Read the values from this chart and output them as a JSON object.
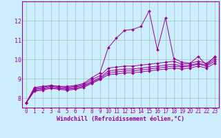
{
  "title": "",
  "xlabel": "Windchill (Refroidissement éolien,°C)",
  "background_color": "#cceeff",
  "line_color": "#990099",
  "grid_color": "#99bbbb",
  "xlim": [
    -0.5,
    23.5
  ],
  "ylim": [
    7.5,
    13.0
  ],
  "xtick_vals": [
    0,
    1,
    2,
    3,
    4,
    5,
    6,
    7,
    8,
    9,
    10,
    11,
    12,
    13,
    14,
    15,
    16,
    17,
    18,
    19,
    20,
    21,
    22,
    23
  ],
  "ytick_vals": [
    8,
    9,
    10,
    11,
    12
  ],
  "series": [
    [
      7.75,
      8.55,
      8.6,
      8.65,
      8.6,
      8.6,
      8.65,
      8.75,
      9.05,
      9.3,
      10.6,
      11.1,
      11.5,
      11.55,
      11.7,
      12.5,
      10.5,
      12.15,
      10.05,
      9.85,
      9.8,
      10.15,
      9.7,
      10.15
    ],
    [
      7.75,
      8.5,
      8.55,
      8.65,
      8.6,
      8.55,
      8.6,
      8.7,
      8.95,
      9.15,
      9.55,
      9.6,
      9.65,
      9.65,
      9.7,
      9.75,
      9.8,
      9.85,
      9.9,
      9.75,
      9.8,
      9.9,
      9.8,
      10.1
    ],
    [
      7.75,
      8.45,
      8.5,
      8.6,
      8.55,
      8.5,
      8.55,
      8.65,
      8.85,
      9.05,
      9.4,
      9.45,
      9.5,
      9.5,
      9.55,
      9.6,
      9.65,
      9.7,
      9.75,
      9.65,
      9.7,
      9.8,
      9.7,
      10.0
    ],
    [
      7.75,
      8.4,
      8.45,
      8.55,
      8.5,
      8.45,
      8.5,
      8.6,
      8.8,
      9.0,
      9.3,
      9.35,
      9.4,
      9.4,
      9.45,
      9.5,
      9.55,
      9.6,
      9.65,
      9.6,
      9.65,
      9.75,
      9.65,
      9.9
    ],
    [
      7.75,
      8.35,
      8.4,
      8.5,
      8.45,
      8.4,
      8.45,
      8.55,
      8.75,
      8.95,
      9.2,
      9.25,
      9.3,
      9.3,
      9.35,
      9.4,
      9.45,
      9.5,
      9.55,
      9.5,
      9.55,
      9.65,
      9.55,
      9.8
    ]
  ],
  "xlabel_fontsize": 6,
  "tick_fontsize": 5.5,
  "ytick_fontsize": 6
}
